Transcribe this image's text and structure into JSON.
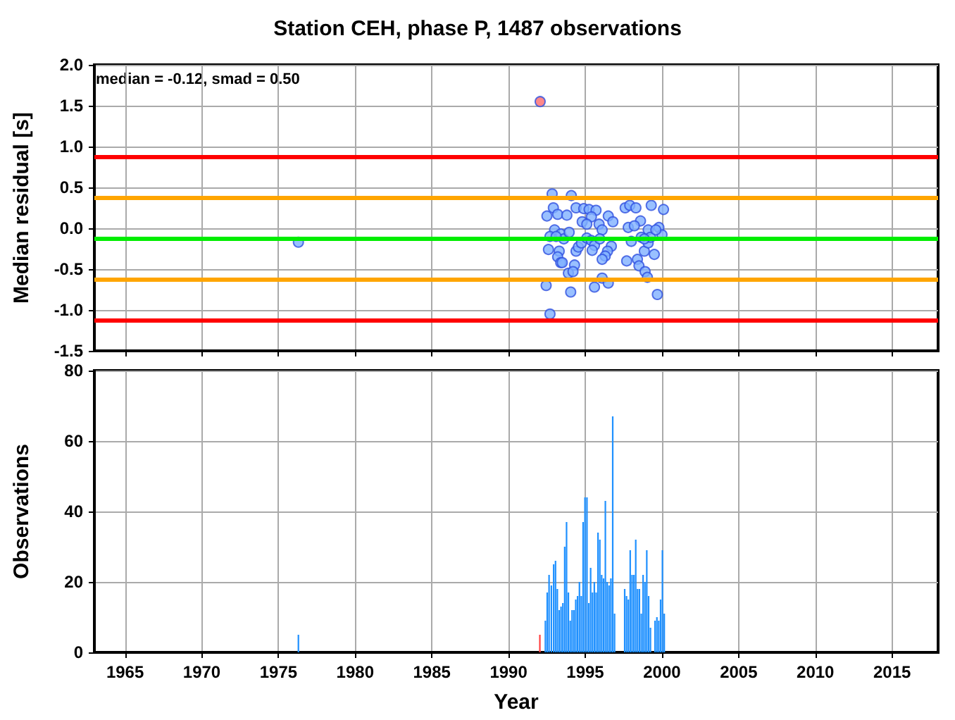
{
  "chart_data": [
    {
      "type": "scatter",
      "title": "Station CEH, phase P, 1487 observations",
      "ylabel": "Median residual [s]",
      "annotations": [
        "median = -0.12, smad = 0.50"
      ],
      "xlim": [
        1963,
        2018
      ],
      "xticks": [
        1965,
        1970,
        1975,
        1980,
        1985,
        1990,
        1995,
        2000,
        2005,
        2010,
        2015
      ],
      "ylim": [
        -1.5,
        2.0
      ],
      "yticks": [
        {
          "value": -1.5,
          "label": "-1.5"
        },
        {
          "value": -1.0,
          "label": "-1.0"
        },
        {
          "value": -0.5,
          "label": "-0.5"
        },
        {
          "value": 0,
          "label": "0.0"
        },
        {
          "value": 0.5,
          "label": "0.5"
        },
        {
          "value": 1.0,
          "label": "1.0"
        },
        {
          "value": 1.5,
          "label": "1.5"
        },
        {
          "value": 2.0,
          "label": "2.0"
        }
      ],
      "tick_labels": "y",
      "grid": true,
      "marker": "circle",
      "ref_lines": [
        {
          "axis": "y",
          "value": 0.88,
          "color": "#ff0000"
        },
        {
          "axis": "y",
          "value": 0.38,
          "color": "#ffa500"
        },
        {
          "axis": "y",
          "value": -0.12,
          "color": "#00ee00"
        },
        {
          "axis": "y",
          "value": -0.62,
          "color": "#ffa500"
        },
        {
          "axis": "y",
          "value": -1.12,
          "color": "#ff0000"
        }
      ],
      "series": [
        {
          "color": "#80b0ff",
          "x": [
            1976.3,
            1992.84,
            1994.09,
            1992.92,
            1992.5,
            1993.2,
            1993.8,
            1994.4,
            1994.9,
            1995.25,
            1995.7,
            1995.4,
            1994.8,
            1995.1,
            1995.9,
            1996.5,
            1996.8,
            1996.1,
            1997.6,
            1997.9,
            1998.3,
            1999.3,
            2000.1,
            1998.6,
            1997.8,
            1998.2,
            1999.1,
            1999.8,
            2000.0,
            1993.0,
            1993.4,
            1992.7,
            1993.6,
            1993.95,
            1993.1,
            1992.6,
            1993.3,
            1993.2,
            1993.4,
            1993.5,
            1993.9,
            1994.3,
            1994.2,
            1994.4,
            1994.55,
            1994.75,
            1995.1,
            1995.4,
            1995.6,
            1995.45,
            1995.95,
            1996.7,
            1996.45,
            1996.3,
            1996.1,
            1996.1,
            1996.5,
            1995.6,
            1994.05,
            1992.45,
            1992.7,
            1997.7,
            1998.0,
            1998.4,
            1998.5,
            1998.85,
            1998.9,
            1999.05,
            1999.1,
            1999.25,
            1999.5,
            1999.7,
            1999.6,
            1998.65,
            1998.85
          ],
          "values": [
            -0.17,
            0.42,
            0.4,
            0.25,
            0.15,
            0.17,
            0.16,
            0.25,
            0.24,
            0.23,
            0.22,
            0.14,
            0.08,
            0.05,
            0.05,
            0.15,
            0.08,
            -0.02,
            0.25,
            0.28,
            0.25,
            0.28,
            0.23,
            0.09,
            0.01,
            0.03,
            -0.02,
            0.01,
            -0.08,
            -0.02,
            -0.07,
            -0.1,
            -0.13,
            -0.05,
            -0.1,
            -0.26,
            -0.28,
            -0.35,
            -0.42,
            -0.42,
            -0.55,
            -0.45,
            -0.53,
            -0.28,
            -0.23,
            -0.18,
            -0.12,
            -0.15,
            -0.21,
            -0.27,
            -0.13,
            -0.22,
            -0.28,
            -0.34,
            -0.38,
            -0.61,
            -0.67,
            -0.72,
            -0.78,
            -0.7,
            -1.05,
            -0.4,
            -0.16,
            -0.38,
            -0.46,
            -0.28,
            -0.53,
            -0.6,
            -0.18,
            -0.11,
            -0.32,
            -0.81,
            -0.02,
            -0.11,
            -0.13
          ]
        },
        {
          "color": "#ff6a6a",
          "x": [
            1992.06
          ],
          "values": [
            1.55
          ]
        }
      ]
    },
    {
      "type": "bar",
      "xlabel": "Year",
      "ylabel": "Observations",
      "xlim": [
        1963,
        2018
      ],
      "xticks": [
        1965,
        1970,
        1975,
        1980,
        1985,
        1990,
        1995,
        2000,
        2005,
        2010,
        2015
      ],
      "ylim": [
        0,
        80
      ],
      "yticks": [
        0,
        20,
        40,
        60,
        80
      ],
      "grid": true,
      "x": [
        1976.3,
        1992.04,
        1992.4,
        1992.52,
        1992.64,
        1992.79,
        1992.94,
        1993.06,
        1993.18,
        1993.3,
        1993.42,
        1993.54,
        1993.66,
        1993.78,
        1993.9,
        1994.02,
        1994.14,
        1994.26,
        1994.38,
        1994.5,
        1994.62,
        1994.74,
        1994.86,
        1994.98,
        1995.11,
        1995.23,
        1995.35,
        1995.47,
        1995.59,
        1995.71,
        1995.83,
        1995.95,
        1996.07,
        1996.19,
        1996.31,
        1996.43,
        1996.55,
        1996.67,
        1996.79,
        1996.91,
        1997.57,
        1997.69,
        1997.81,
        1997.93,
        1998.05,
        1998.17,
        1998.29,
        1998.41,
        1998.53,
        1998.65,
        1998.77,
        1998.89,
        1999.01,
        1999.13,
        1999.25,
        1999.55,
        1999.67,
        1999.79,
        1999.91,
        2000.03,
        2000.15
      ],
      "values": [
        5,
        5,
        9,
        17,
        22,
        19,
        25,
        26,
        18,
        12,
        13,
        14,
        30,
        37,
        17,
        9,
        12,
        12,
        15,
        16,
        20,
        16,
        37,
        44,
        44,
        14,
        24,
        17,
        20,
        17,
        34,
        32,
        22,
        21,
        43,
        20,
        19,
        21,
        67,
        11,
        18,
        16,
        15,
        29,
        22,
        22,
        32,
        18,
        18,
        11,
        22,
        20,
        29,
        16,
        7,
        9,
        10,
        9,
        15,
        29,
        11
      ],
      "colors": [
        "#1e90ff",
        "#ff4040",
        "#1e90ff",
        "#1e90ff",
        "#1e90ff",
        "#1e90ff",
        "#1e90ff",
        "#1e90ff",
        "#1e90ff",
        "#1e90ff",
        "#1e90ff",
        "#1e90ff",
        "#1e90ff",
        "#1e90ff",
        "#1e90ff",
        "#1e90ff",
        "#1e90ff",
        "#1e90ff",
        "#1e90ff",
        "#1e90ff",
        "#1e90ff",
        "#1e90ff",
        "#1e90ff",
        "#1e90ff",
        "#1e90ff",
        "#1e90ff",
        "#1e90ff",
        "#1e90ff",
        "#1e90ff",
        "#1e90ff",
        "#1e90ff",
        "#1e90ff",
        "#1e90ff",
        "#1e90ff",
        "#1e90ff",
        "#1e90ff",
        "#1e90ff",
        "#1e90ff",
        "#1e90ff",
        "#1e90ff",
        "#1e90ff",
        "#1e90ff",
        "#1e90ff",
        "#1e90ff",
        "#1e90ff",
        "#1e90ff",
        "#1e90ff",
        "#1e90ff",
        "#1e90ff",
        "#1e90ff",
        "#1e90ff",
        "#1e90ff",
        "#1e90ff",
        "#1e90ff",
        "#1e90ff",
        "#1e90ff",
        "#1e90ff",
        "#1e90ff",
        "#1e90ff",
        "#1e90ff",
        "#1e90ff"
      ]
    }
  ]
}
